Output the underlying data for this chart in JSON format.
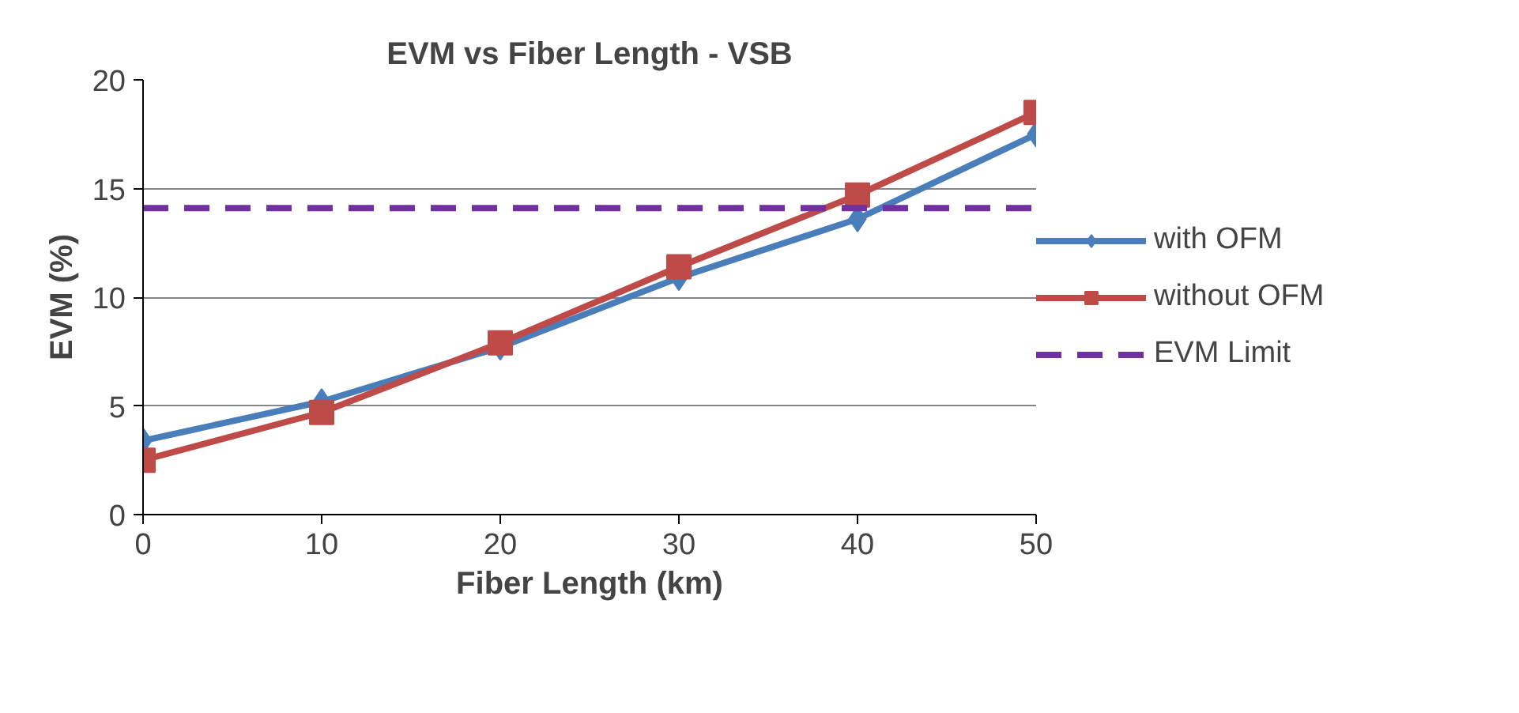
{
  "chart_data": {
    "type": "line",
    "title": "EVM vs Fiber Length - VSB",
    "xlabel": "Fiber Length (km)",
    "ylabel": "EVM (%)",
    "x": [
      0,
      10,
      20,
      30,
      40,
      50
    ],
    "series": [
      {
        "name": "with OFM",
        "color": "#4a7ebb",
        "marker": "diamond",
        "values": [
          3.4,
          5.2,
          7.7,
          10.9,
          13.6,
          17.5
        ]
      },
      {
        "name": "without OFM",
        "color": "#be4b48",
        "marker": "square",
        "values": [
          2.5,
          4.7,
          7.9,
          11.4,
          14.7,
          18.5
        ]
      }
    ],
    "ref_lines": [
      {
        "axis": "y",
        "value": 14.1,
        "label": "EVM Limit",
        "color": "#7030a0",
        "line_style": "dashed"
      }
    ],
    "xlim": [
      0,
      50
    ],
    "xticks": [
      0,
      10,
      20,
      30,
      40,
      50
    ],
    "ylim": [
      0,
      20
    ],
    "yticks": [
      0,
      5,
      10,
      15,
      20
    ],
    "grid": "y",
    "legend": "right",
    "line_style": "solid"
  }
}
